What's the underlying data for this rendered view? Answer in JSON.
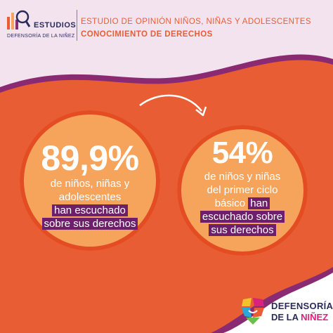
{
  "header": {
    "logo_word": "ESTUDIOS",
    "logo_sub": "DEFENSORÍA DE LA NIÑEZ",
    "study_title": "ESTUDIO DE OPINIÓN NIÑOS, NIÑAS Y ADOLESCENTES",
    "study_subtitle": "CONOCIMIENTO DE DERECHOS"
  },
  "stats": [
    {
      "value": "89,9%",
      "desc_plain_1": "de niños, niñas y",
      "desc_plain_2": "adolescentes",
      "desc_highlight_1": "han escuchado",
      "desc_highlight_2": "sobre sus derechos"
    },
    {
      "value": "54%",
      "desc_plain_1": "de niños y niñas",
      "desc_plain_2": "del primer ciclo",
      "desc_plain_3": "básico",
      "desc_highlight_1": "han",
      "desc_highlight_2": "escuchado sobre",
      "desc_highlight_3": "sus derechos"
    }
  ],
  "footer": {
    "brand_line1": "DEFENSORÍA",
    "brand_line2_a": "DE LA ",
    "brand_line2_b": "NIÑEZ"
  },
  "colors": {
    "background": "#e85d33",
    "header_bg": "#f3e3ef",
    "header_accent": "#8a2a72",
    "circle_fill": "#f6a45c",
    "highlight": "#6e1f6b",
    "text_navy": "#2b2b5a"
  },
  "icons": {
    "logo": "chart-magnifier-icon",
    "arrow": "curved-arrow-icon",
    "brand": "multicolor-shield-icon"
  }
}
